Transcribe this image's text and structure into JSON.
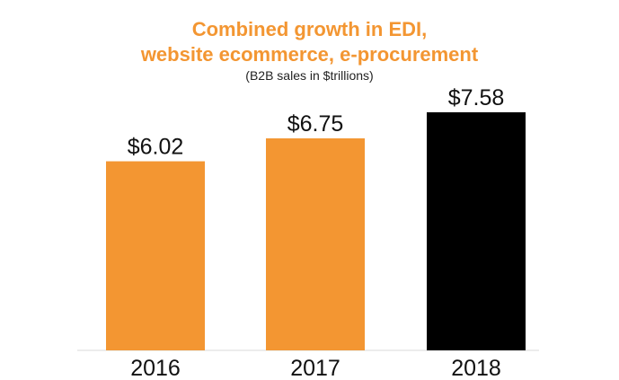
{
  "chart_data": {
    "type": "bar",
    "title_lines": [
      "Combined growth in EDI,",
      "website ecommerce, e-procurement"
    ],
    "subtitle": "(B2B sales in $trillions)",
    "categories": [
      "2016",
      "2017",
      "2018"
    ],
    "values": [
      6.02,
      6.75,
      7.58
    ],
    "value_labels": [
      "$6.02",
      "$6.75",
      "$7.58"
    ],
    "bar_colors": [
      "#f39632",
      "#f39632",
      "#000000"
    ],
    "title_color": "#f39632",
    "ylim": [
      0,
      7.58
    ],
    "grid": false,
    "legend": "none"
  }
}
